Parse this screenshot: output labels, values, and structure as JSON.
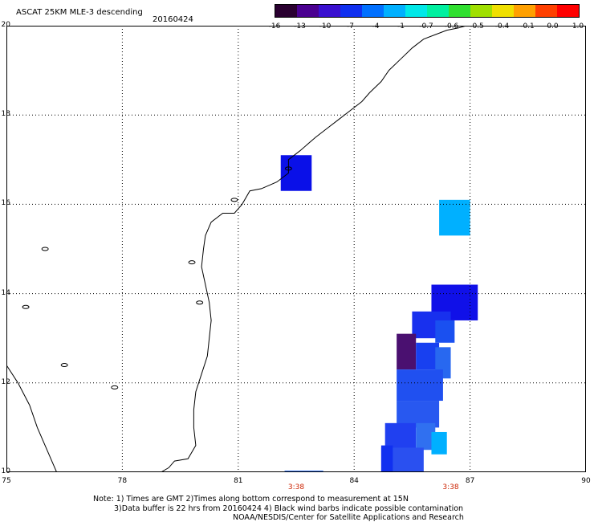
{
  "header": {
    "title": "ASCAT 25KM MLE-3 descending",
    "date": "20160424"
  },
  "colorbar": {
    "labels": [
      "-16",
      "-13",
      "-10",
      "-7",
      "-4",
      "-1",
      "-0.7",
      "-0.6",
      "-0.5",
      "-0.4",
      "-0.1",
      "0.0",
      "1.0"
    ],
    "colors": [
      "#2a0030",
      "#4a0090",
      "#3a10d0",
      "#1030f0",
      "#0070ff",
      "#00b0ff",
      "#00e8e8",
      "#00f0a0",
      "#30e030",
      "#a0e000",
      "#f0e000",
      "#ffa000",
      "#ff4000",
      "#ff0000"
    ]
  },
  "axes": {
    "y_ticks": [
      "20",
      "18",
      "16",
      "14",
      "12",
      "10"
    ],
    "x_ticks": [
      "75",
      "78",
      "81",
      "84",
      "87",
      "90"
    ],
    "time_labels": [
      "3:38",
      "3:38"
    ]
  },
  "map": {
    "lon_range": [
      75,
      90
    ],
    "lat_range": [
      10,
      20
    ],
    "grid": "dotted",
    "cells": [
      {
        "lon": 82.1,
        "lat": 16.3,
        "w": 0.8,
        "h": 0.8,
        "color": "#0a10e8"
      },
      {
        "lon": 86.2,
        "lat": 15.3,
        "w": 0.8,
        "h": 0.8,
        "color": "#00b0ff"
      },
      {
        "lon": 86.0,
        "lat": 13.4,
        "w": 1.2,
        "h": 0.8,
        "color": "#1010e8"
      },
      {
        "lon": 85.5,
        "lat": 13.0,
        "w": 1.0,
        "h": 0.6,
        "color": "#1830ee"
      },
      {
        "lon": 86.1,
        "lat": 12.9,
        "w": 0.5,
        "h": 0.5,
        "color": "#1a50f0"
      },
      {
        "lon": 85.1,
        "lat": 12.3,
        "w": 0.5,
        "h": 0.8,
        "color": "#4a1070"
      },
      {
        "lon": 85.6,
        "lat": 12.3,
        "w": 0.6,
        "h": 0.6,
        "color": "#1840f0"
      },
      {
        "lon": 86.1,
        "lat": 12.1,
        "w": 0.4,
        "h": 0.7,
        "color": "#2868f0"
      },
      {
        "lon": 85.1,
        "lat": 11.6,
        "w": 1.2,
        "h": 0.7,
        "color": "#2050f0"
      },
      {
        "lon": 85.1,
        "lat": 11.0,
        "w": 1.1,
        "h": 0.6,
        "color": "#2858f0"
      },
      {
        "lon": 84.8,
        "lat": 10.5,
        "w": 0.8,
        "h": 0.6,
        "color": "#2040f0"
      },
      {
        "lon": 85.6,
        "lat": 10.5,
        "w": 0.5,
        "h": 0.6,
        "color": "#3070f0"
      },
      {
        "lon": 86.0,
        "lat": 10.4,
        "w": 0.4,
        "h": 0.5,
        "color": "#00b0ff"
      },
      {
        "lon": 84.7,
        "lat": 10.0,
        "w": 1.1,
        "h": 0.55,
        "color": "#2a50f0"
      },
      {
        "lon": 84.7,
        "lat": 10.0,
        "w": 0.3,
        "h": 0.6,
        "color": "#1030f0"
      }
    ]
  },
  "footer": {
    "line1": "Note: 1) Times are GMT 2)Times along bottom correspond to measurement at 15N",
    "line2": "3)Data buffer is 22 hrs from 20160424 4) Black wind barbs indicate possible contamination",
    "line3": "NOAA/NESDIS/Center for Satellite Applications and Research"
  }
}
